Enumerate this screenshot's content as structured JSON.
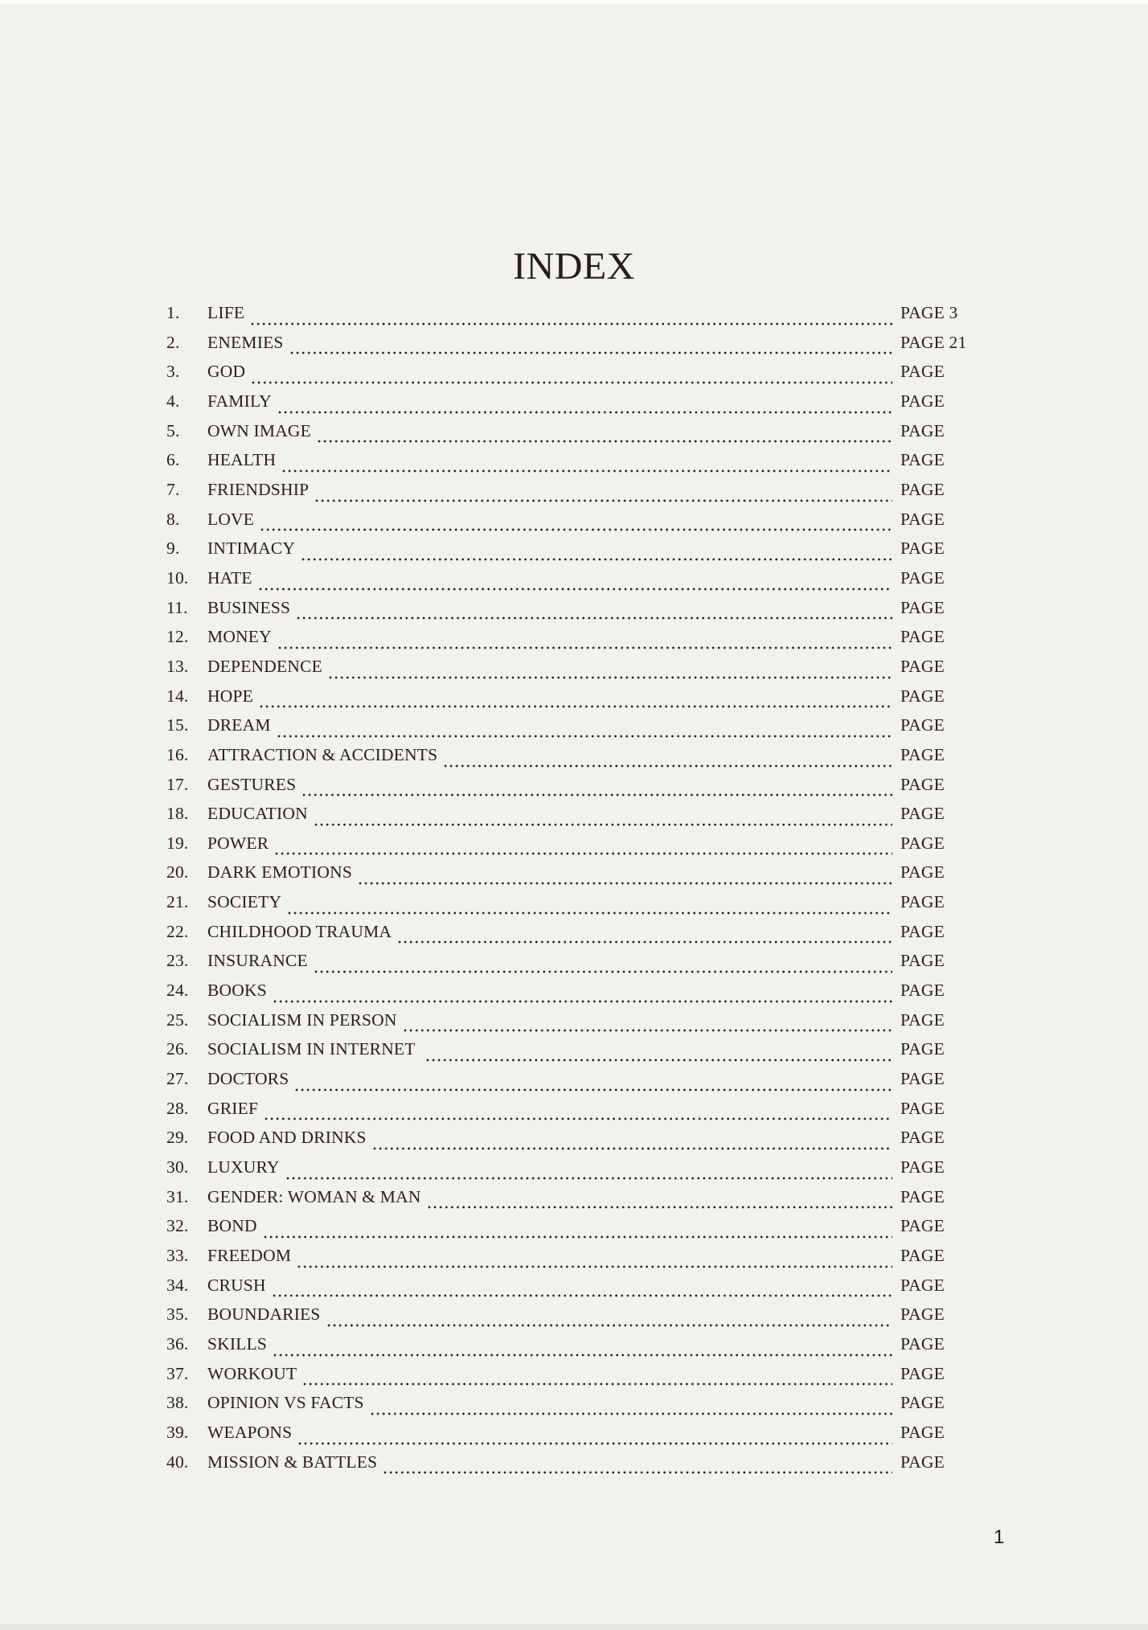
{
  "title": "INDEX",
  "page_number": "1",
  "toc": {
    "entries": [
      {
        "num": "1.",
        "title": "LIFE",
        "page": "PAGE 3"
      },
      {
        "num": "2.",
        "title": "ENEMIES",
        "page": "PAGE 21"
      },
      {
        "num": "3.",
        "title": "GOD",
        "page": "PAGE"
      },
      {
        "num": "4.",
        "title": "FAMILY",
        "page": "PAGE"
      },
      {
        "num": "5.",
        "title": "OWN IMAGE",
        "page": "PAGE"
      },
      {
        "num": "6.",
        "title": "HEALTH",
        "page": "PAGE"
      },
      {
        "num": "7.",
        "title": "FRIENDSHIP",
        "page": "PAGE"
      },
      {
        "num": "8.",
        "title": "LOVE",
        "page": "PAGE"
      },
      {
        "num": "9.",
        "title": "INTIMACY",
        "page": "PAGE"
      },
      {
        "num": "10.",
        "title": "HATE",
        "page": "PAGE"
      },
      {
        "num": "11.",
        "title": "BUSINESS",
        "page": "PAGE"
      },
      {
        "num": "12.",
        "title": "MONEY",
        "page": "PAGE"
      },
      {
        "num": "13.",
        "title": "DEPENDENCE",
        "page": "PAGE"
      },
      {
        "num": "14.",
        "title": "HOPE",
        "page": "PAGE"
      },
      {
        "num": "15.",
        "title": "DREAM",
        "page": "PAGE"
      },
      {
        "num": "16.",
        "title": "ATTRACTION & ACCIDENTS",
        "page": "PAGE"
      },
      {
        "num": "17.",
        "title": "GESTURES",
        "page": "PAGE"
      },
      {
        "num": "18.",
        "title": "EDUCATION",
        "page": "PAGE"
      },
      {
        "num": "19.",
        "title": "POWER",
        "page": "PAGE"
      },
      {
        "num": "20.",
        "title": "DARK EMOTIONS",
        "page": "PAGE"
      },
      {
        "num": "21.",
        "title": "SOCIETY",
        "page": "PAGE"
      },
      {
        "num": "22.",
        "title": "CHILDHOOD TRAUMA",
        "page": "PAGE"
      },
      {
        "num": "23.",
        "title": "INSURANCE",
        "page": "PAGE"
      },
      {
        "num": "24.",
        "title": "BOOKS",
        "page": "PAGE"
      },
      {
        "num": "25.",
        "title": "SOCIALISM IN PERSON",
        "page": "PAGE"
      },
      {
        "num": "26.",
        "title": "SOCIALISM IN INTERNET ",
        "page": "PAGE"
      },
      {
        "num": "27.",
        "title": "DOCTORS",
        "page": "PAGE"
      },
      {
        "num": "28.",
        "title": "GRIEF",
        "page": "PAGE"
      },
      {
        "num": "29.",
        "title": "FOOD AND DRINKS",
        "page": "PAGE"
      },
      {
        "num": "30.",
        "title": "LUXURY",
        "page": "PAGE"
      },
      {
        "num": "31.",
        "title": "GENDER: WOMAN & MAN",
        "page": "PAGE"
      },
      {
        "num": "32.",
        "title": "BOND",
        "page": "PAGE"
      },
      {
        "num": "33.",
        "title": "FREEDOM",
        "page": "PAGE"
      },
      {
        "num": "34.",
        "title": "CRUSH",
        "page": "PAGE"
      },
      {
        "num": "35.",
        "title": "BOUNDARIES",
        "page": "PAGE"
      },
      {
        "num": "36.",
        "title": "SKILLS",
        "page": "PAGE"
      },
      {
        "num": "37.",
        "title": "WORKOUT",
        "page": "PAGE"
      },
      {
        "num": "38.",
        "title": "OPINION VS FACTS",
        "page": "PAGE"
      },
      {
        "num": "39.",
        "title": "WEAPONS",
        "page": "PAGE"
      },
      {
        "num": "40.",
        "title": "MISSION & BATTLES",
        "page": "PAGE"
      }
    ]
  }
}
